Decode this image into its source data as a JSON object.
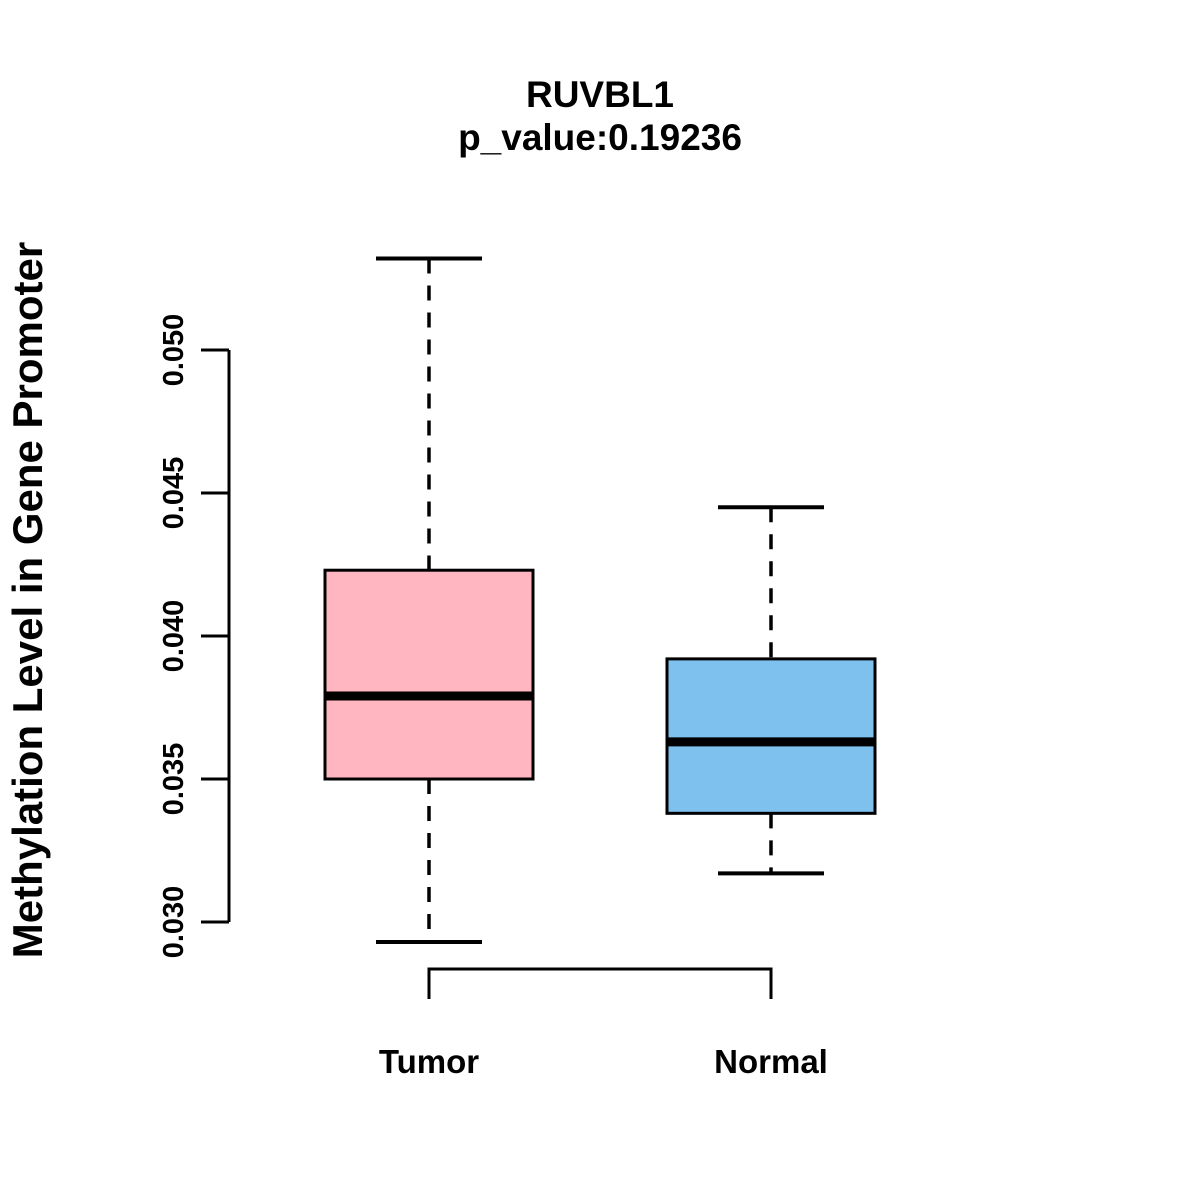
{
  "title": "RUVBL1",
  "subtitle": "p_value:0.19236",
  "ylabel": "Methylation Level in Gene Promoter",
  "chart_data": {
    "type": "boxplot",
    "title": "RUVBL1",
    "subtitle": "p_value:0.19236",
    "ylabel": "Methylation Level in Gene Promoter",
    "xlabel": "",
    "categories": [
      "Tumor",
      "Normal"
    ],
    "series": [
      {
        "name": "Tumor",
        "color": "#FFB6C1",
        "whisker_low": 0.0293,
        "q1": 0.035,
        "median": 0.0379,
        "q3": 0.0423,
        "whisker_high": 0.0532
      },
      {
        "name": "Normal",
        "color": "#7EC0EE",
        "whisker_low": 0.0317,
        "q1": 0.0338,
        "median": 0.0363,
        "q3": 0.0392,
        "whisker_high": 0.0445
      }
    ],
    "yticks": [
      0.03,
      0.035,
      0.04,
      0.045,
      0.05
    ],
    "ytick_labels": [
      "0.030",
      "0.035",
      "0.040",
      "0.045",
      "0.050"
    ],
    "ylim": [
      0.029,
      0.0545
    ],
    "grid": false,
    "legend": "none",
    "comparison_bracket": true,
    "colors": {
      "axis": "#000000",
      "text": "#000000",
      "median": "#000000",
      "background": "#FFFFFF"
    }
  }
}
